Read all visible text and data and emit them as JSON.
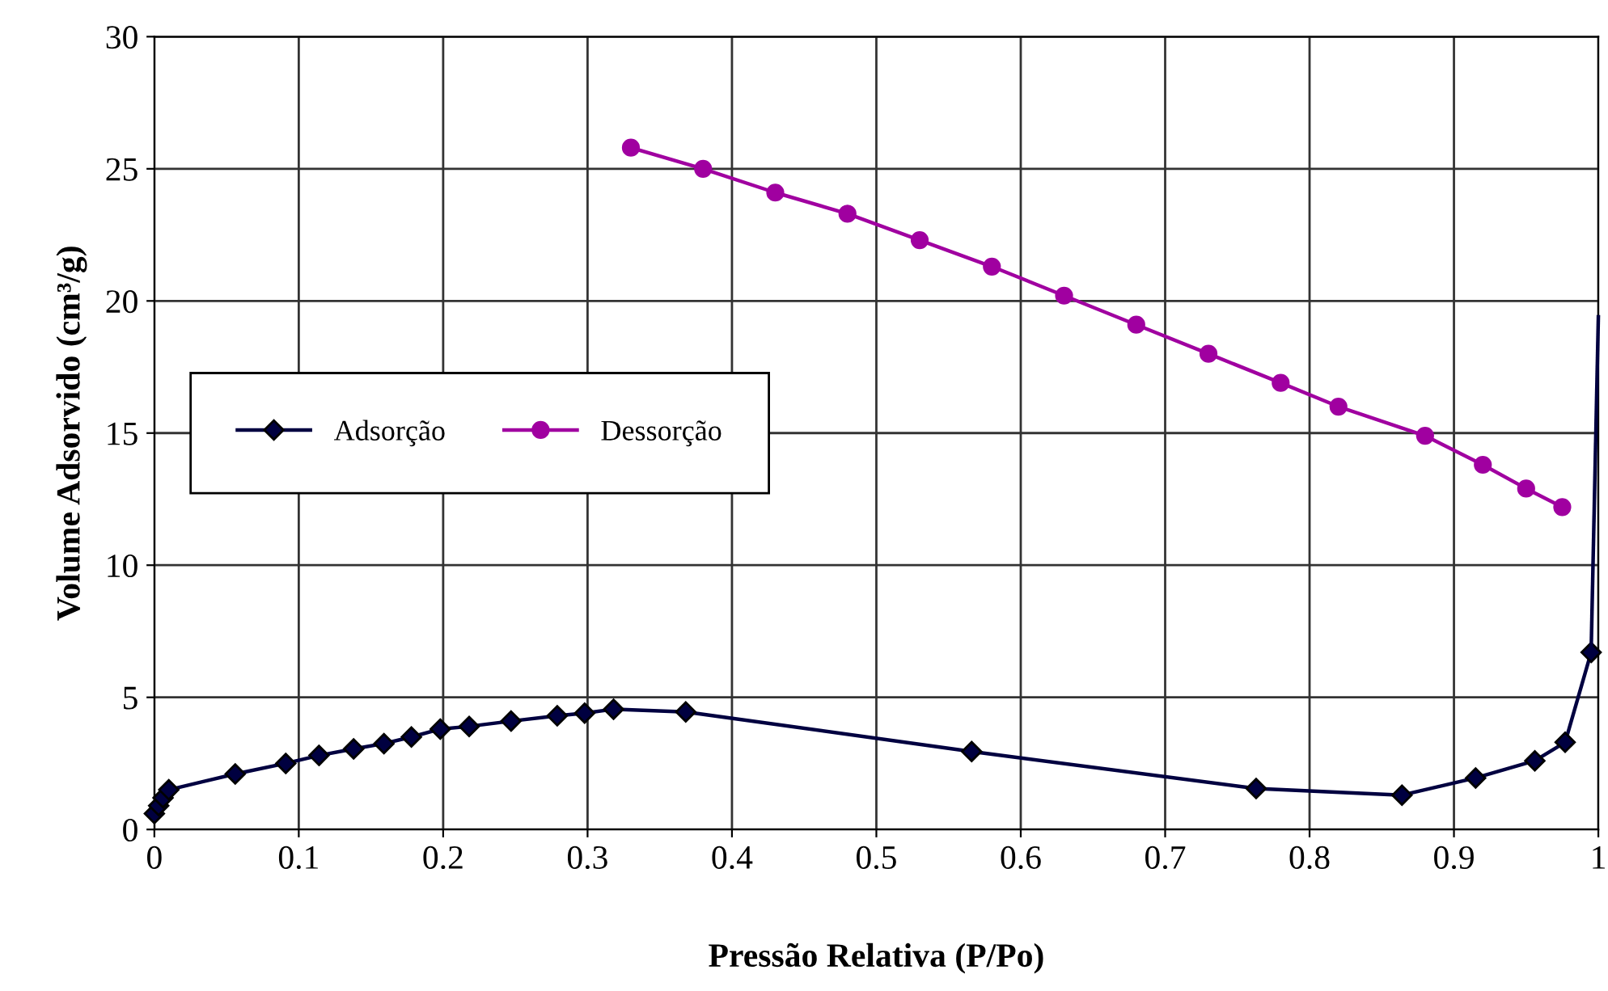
{
  "chart_data": {
    "type": "line",
    "xlabel": "Pressão Relativa (P/Po)",
    "ylabel": "Volume Adsorvido (cm³/g)",
    "xlim": [
      0,
      1
    ],
    "xticks": [
      0,
      0.1,
      0.2,
      0.3,
      0.4,
      0.5,
      0.6,
      0.7,
      0.8,
      0.9,
      1
    ],
    "ylim": [
      0,
      30
    ],
    "yticks": [
      0,
      5,
      10,
      15,
      20,
      25,
      30
    ],
    "grid": true,
    "legend": "left",
    "series": [
      {
        "name": "Adsorção",
        "color": "#000040",
        "marker": "diamond",
        "x": [
          0,
          0.003,
          0.006,
          0.01,
          0.056,
          0.091,
          0.114,
          0.138,
          0.159,
          0.178,
          0.198,
          0.218,
          0.247,
          0.279,
          0.298,
          0.318,
          0.368,
          0.566,
          0.763,
          0.864,
          0.915,
          0.956,
          0.977,
          0.995
        ],
        "values": [
          0.6,
          0.9,
          1.2,
          1.5,
          2.1,
          2.5,
          2.8,
          3.05,
          3.25,
          3.5,
          3.8,
          3.9,
          4.1,
          4.3,
          4.4,
          4.55,
          4.45,
          2.95,
          1.55,
          1.3,
          1.95,
          2.6,
          3.3,
          6.7
        ]
      },
      {
        "color": "#000040",
        "marker": "none",
        "x": [
          0.995,
          1.0
        ],
        "values": [
          6.7,
          19.4
        ]
      },
      {
        "name": "Dessorção",
        "color": "#a000a0",
        "marker": "circle",
        "x": [
          0.33,
          0.38,
          0.43,
          0.48,
          0.53,
          0.58,
          0.63,
          0.68,
          0.73,
          0.78,
          0.82,
          0.88,
          0.92,
          0.95,
          0.975
        ],
        "values": [
          25.8,
          25.0,
          24.1,
          23.3,
          22.3,
          21.3,
          20.2,
          19.1,
          18.0,
          16.9,
          16.0,
          14.9,
          13.8,
          12.9,
          12.2
        ]
      }
    ]
  }
}
